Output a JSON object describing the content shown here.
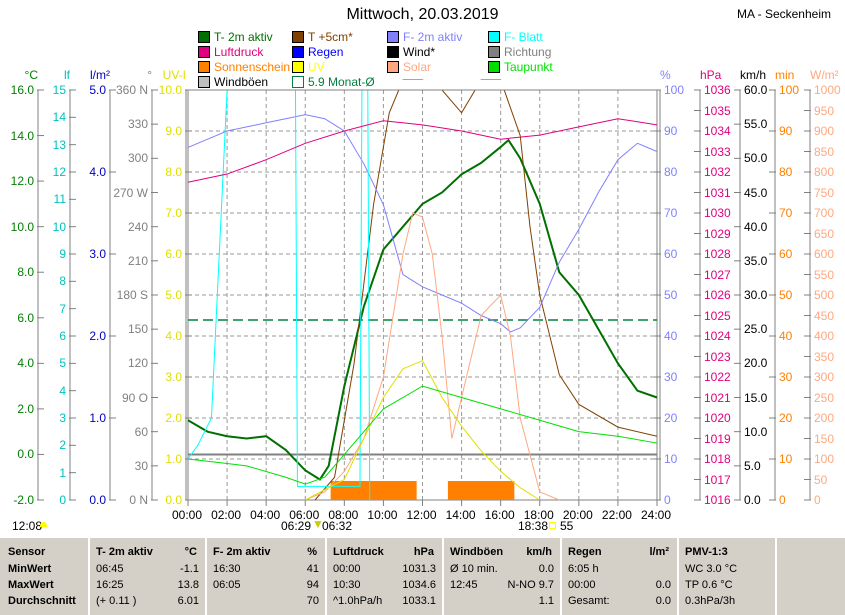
{
  "header": {
    "title": "Mittwoch, 20.03.2019",
    "station": "MA - Seckenheim"
  },
  "legend": [
    {
      "label": "T- 2m aktiv",
      "color": "#007000"
    },
    {
      "label": "T +5cm*",
      "color": "#804000"
    },
    {
      "label": "F- 2m aktiv",
      "color": "#8080ff"
    },
    {
      "label": "F- Blatt",
      "color": "#00ffff"
    },
    {
      "label": "Luftdruck",
      "color": "#e0007f"
    },
    {
      "label": "Regen",
      "color": "#0000ff"
    },
    {
      "label": "Wind*",
      "color": "#000000"
    },
    {
      "label": "Richtung",
      "color": "#808080"
    },
    {
      "label": "Sonnenschein",
      "color": "#ff8000"
    },
    {
      "label": "UV",
      "color": "#ffff00"
    },
    {
      "label": "Solar",
      "color": "#ffa880"
    },
    {
      "label": "Taupunkt",
      "color": "#00e000"
    },
    {
      "label": "Windböen",
      "color": "#c0c0c0"
    },
    {
      "label": "5.9 Monat-Ø",
      "color": "#008040"
    }
  ],
  "axes": {
    "left": [
      {
        "unit": "°C",
        "color": "#008000",
        "ticks": [
          "16.0",
          "14.0",
          "12.0",
          "10.0",
          "8.0",
          "6.0",
          "4.0",
          "2.0",
          "0.0",
          "-2.0"
        ]
      },
      {
        "unit": "lf",
        "color": "#00c0c0",
        "ticks": [
          "15",
          "14",
          "13",
          "12",
          "11",
          "10",
          "9",
          "8",
          "7",
          "6",
          "5",
          "4",
          "3",
          "2",
          "1",
          "0"
        ]
      },
      {
        "unit": "l/m²",
        "color": "#0000c0",
        "ticks": [
          "5.0",
          "4.0",
          "3.0",
          "2.0",
          "1.0",
          "0.0"
        ]
      },
      {
        "unit": "°",
        "color": "#808080",
        "ticks": [
          "360 N",
          "330",
          "300",
          "270 W",
          "240",
          "210",
          "180 S",
          "150",
          "120",
          "90 O",
          "60",
          "30",
          "0 N"
        ]
      },
      {
        "unit": "UV-I",
        "color": "#e0e000",
        "ticks": [
          "10.0",
          "9.0",
          "8.0",
          "7.0",
          "6.0",
          "5.0",
          "4.0",
          "3.0",
          "2.0",
          "1.0",
          "0.0"
        ]
      }
    ],
    "right": [
      {
        "unit": "%",
        "color": "#8080ff",
        "ticks": [
          "100",
          "90",
          "80",
          "70",
          "60",
          "50",
          "40",
          "30",
          "20",
          "10",
          "0"
        ]
      },
      {
        "unit": "hPa",
        "color": "#e0007f",
        "ticks": [
          "1036",
          "1035",
          "1034",
          "1033",
          "1032",
          "1031",
          "1030",
          "1029",
          "1028",
          "1027",
          "1026",
          "1025",
          "1024",
          "1023",
          "1022",
          "1021",
          "1020",
          "1019",
          "1018",
          "1017",
          "1016"
        ]
      },
      {
        "unit": "km/h",
        "color": "#000000",
        "ticks": [
          "60.0",
          "55.0",
          "50.0",
          "45.0",
          "40.0",
          "35.0",
          "30.0",
          "25.0",
          "20.0",
          "15.0",
          "10.0",
          "5.0",
          "0.0"
        ]
      },
      {
        "unit": "min",
        "color": "#ff8000",
        "ticks": [
          "100",
          "90",
          "80",
          "70",
          "60",
          "50",
          "40",
          "30",
          "20",
          "10",
          "0"
        ]
      },
      {
        "unit": "W/m²",
        "color": "#ffa880",
        "ticks": [
          "1000",
          "950",
          "900",
          "850",
          "800",
          "750",
          "700",
          "650",
          "600",
          "550",
          "500",
          "450",
          "400",
          "350",
          "300",
          "250",
          "200",
          "150",
          "100",
          "50",
          "0"
        ]
      }
    ],
    "x_ticks": [
      "00:00",
      "02:00",
      "04:00",
      "06:00",
      "08:00",
      "10:00",
      "12:00",
      "14:00",
      "16:00",
      "18:00",
      "20:00",
      "22:00",
      "24:00"
    ]
  },
  "sun": {
    "left_time": "12:08",
    "sunrise": "06:29",
    "sunrise2": "06:32",
    "sunset": "18:38",
    "sunset_val": "55"
  },
  "chart_data": {
    "type": "line",
    "title": "Mittwoch, 20.03.2019",
    "xlabel": "",
    "xlim": [
      0,
      24
    ],
    "series": [
      {
        "name": "T- 2m aktiv",
        "axis": "°C",
        "ylim": [
          -2,
          16
        ],
        "color": "#007000",
        "width": 2,
        "points": [
          [
            0,
            1.5
          ],
          [
            1,
            1.0
          ],
          [
            2,
            0.8
          ],
          [
            3,
            0.7
          ],
          [
            4,
            0.8
          ],
          [
            5,
            0.2
          ],
          [
            6,
            -0.7
          ],
          [
            6.75,
            -1.1
          ],
          [
            7.2,
            -0.5
          ],
          [
            8,
            3
          ],
          [
            9,
            6.5
          ],
          [
            10,
            9
          ],
          [
            11,
            10
          ],
          [
            12,
            11
          ],
          [
            13,
            11.5
          ],
          [
            14,
            12.3
          ],
          [
            15,
            12.8
          ],
          [
            16,
            13.5
          ],
          [
            16.4,
            13.8
          ],
          [
            17,
            13
          ],
          [
            18,
            11
          ],
          [
            19,
            8
          ],
          [
            20,
            7
          ],
          [
            21,
            5.5
          ],
          [
            22,
            4
          ],
          [
            23,
            2.8
          ],
          [
            24,
            2.5
          ]
        ]
      },
      {
        "name": "T +5cm*",
        "axis": "°C",
        "ylim": [
          -2,
          16
        ],
        "color": "#804000",
        "width": 1,
        "points": [
          [
            6.5,
            -2
          ],
          [
            7.5,
            -1
          ],
          [
            8.5,
            4
          ],
          [
            9.5,
            11
          ],
          [
            10.3,
            15
          ],
          [
            11,
            17
          ],
          [
            12,
            17
          ],
          [
            13,
            16
          ],
          [
            14,
            15
          ],
          [
            15,
            17
          ],
          [
            16,
            17
          ],
          [
            17,
            14
          ],
          [
            17.5,
            10
          ],
          [
            18,
            7
          ],
          [
            19,
            3.5
          ],
          [
            20,
            2.2
          ],
          [
            22,
            1.2
          ],
          [
            24,
            0.8
          ]
        ]
      },
      {
        "name": "F- 2m aktiv",
        "axis": "%",
        "ylim": [
          0,
          100
        ],
        "color": "#8080ff",
        "width": 1,
        "points": [
          [
            0,
            86
          ],
          [
            1,
            88
          ],
          [
            2,
            90
          ],
          [
            3,
            91
          ],
          [
            4,
            92
          ],
          [
            5,
            93
          ],
          [
            6,
            94
          ],
          [
            7,
            93
          ],
          [
            8,
            90
          ],
          [
            9,
            82
          ],
          [
            10,
            72
          ],
          [
            11,
            55
          ],
          [
            12,
            52
          ],
          [
            13,
            50
          ],
          [
            14,
            48
          ],
          [
            15,
            45
          ],
          [
            16,
            43
          ],
          [
            16.5,
            41
          ],
          [
            17,
            42
          ],
          [
            18,
            47
          ],
          [
            19,
            58
          ],
          [
            20,
            66
          ],
          [
            21,
            75
          ],
          [
            22,
            83
          ],
          [
            23,
            87
          ],
          [
            24,
            85
          ]
        ]
      },
      {
        "name": "F- Blatt",
        "axis": "lf",
        "ylim": [
          0,
          15
        ],
        "color": "#00ffff",
        "width": 1,
        "points": [
          [
            0,
            1.5
          ],
          [
            0.5,
            2
          ],
          [
            1.2,
            3
          ],
          [
            1.6,
            9
          ],
          [
            2,
            15
          ],
          [
            5.5,
            15
          ],
          [
            5.6,
            0.5
          ],
          [
            8.8,
            0.5
          ],
          [
            8.9,
            15
          ],
          [
            9.2,
            15
          ],
          [
            9.3,
            0
          ]
        ]
      },
      {
        "name": "Luftdruck",
        "axis": "hPa",
        "ylim": [
          1016,
          1036
        ],
        "color": "#e0007f",
        "width": 1,
        "points": [
          [
            0,
            1031.5
          ],
          [
            2,
            1031.9
          ],
          [
            4,
            1032.6
          ],
          [
            6,
            1033.4
          ],
          [
            8,
            1034
          ],
          [
            10,
            1034.5
          ],
          [
            12,
            1034.3
          ],
          [
            14,
            1034
          ],
          [
            16,
            1033.6
          ],
          [
            18,
            1033.8
          ],
          [
            20,
            1034.2
          ],
          [
            22,
            1034.6
          ],
          [
            24,
            1034.3
          ]
        ]
      },
      {
        "name": "Solar",
        "axis": "W/m²",
        "ylim": [
          0,
          1000
        ],
        "color": "#ffa880",
        "width": 1,
        "points": [
          [
            6,
            0
          ],
          [
            7,
            20
          ],
          [
            8,
            70
          ],
          [
            9,
            150
          ],
          [
            10,
            300
          ],
          [
            11,
            600
          ],
          [
            11.5,
            700
          ],
          [
            12,
            690
          ],
          [
            12.5,
            600
          ],
          [
            13,
            400
          ],
          [
            13.5,
            150
          ],
          [
            14,
            250
          ],
          [
            15,
            450
          ],
          [
            16,
            500
          ],
          [
            16.5,
            400
          ],
          [
            17,
            200
          ],
          [
            18,
            20
          ],
          [
            19,
            0
          ]
        ]
      },
      {
        "name": "UV",
        "axis": "UV-I",
        "ylim": [
          0,
          10
        ],
        "color": "#e0e000",
        "width": 1,
        "points": [
          [
            6,
            0
          ],
          [
            8,
            0.5
          ],
          [
            9,
            1.5
          ],
          [
            10,
            2.5
          ],
          [
            11,
            3.2
          ],
          [
            12,
            3.4
          ],
          [
            13,
            2.5
          ],
          [
            14,
            1.8
          ],
          [
            15,
            1.2
          ],
          [
            16,
            0.7
          ],
          [
            17,
            0.3
          ],
          [
            18,
            0
          ]
        ]
      },
      {
        "name": "Taupunkt",
        "axis": "°C",
        "ylim": [
          -2,
          16
        ],
        "color": "#00e000",
        "width": 1,
        "points": [
          [
            0,
            -0.2
          ],
          [
            2,
            -0.4
          ],
          [
            3,
            -0.5
          ],
          [
            5,
            -1
          ],
          [
            6,
            -1.3
          ],
          [
            7,
            -1
          ],
          [
            8,
            0
          ],
          [
            10,
            2
          ],
          [
            12,
            3
          ],
          [
            14,
            2.5
          ],
          [
            16,
            2
          ],
          [
            18,
            1.5
          ],
          [
            20,
            1
          ],
          [
            22,
            0.8
          ],
          [
            24,
            0.5
          ]
        ]
      }
    ],
    "sunshine_periods": [
      [
        7.3,
        11.7
      ],
      [
        13.3,
        16.7
      ]
    ],
    "monthly_avg": 5.9,
    "zero_line": 0
  },
  "table": {
    "headers": [
      [
        "Sensor",
        ""
      ],
      [
        "T- 2m aktiv",
        "°C"
      ],
      [
        "F- 2m aktiv",
        "%"
      ],
      [
        "Luftdruck",
        "hPa"
      ],
      [
        "Windböen",
        "km/h"
      ],
      [
        "Regen",
        "l/m²"
      ],
      [
        "PMV-1:3",
        ""
      ]
    ],
    "rows": [
      [
        "MinWert",
        "06:45",
        "-1.1",
        "16:30",
        "41",
        "00:00",
        "1031.3",
        "Ø 10 min.",
        "0.0",
        "6:05 h",
        "",
        "WC 3.0 °C"
      ],
      [
        "MaxWert",
        "16:25",
        "13.8",
        "06:05",
        "94",
        "10:30",
        "1034.6",
        "12:45",
        "N-NO 9.7",
        "00:00",
        "0.0",
        "TP 0.6 °C"
      ],
      [
        "Durchschnitt",
        "(+ 0.11 )",
        "6.01",
        "",
        "70",
        "^1.0hPa/h",
        "1033.1",
        "",
        "1.1",
        "Gesamt:",
        "0.0",
        "0.3hPa/3h"
      ]
    ]
  }
}
